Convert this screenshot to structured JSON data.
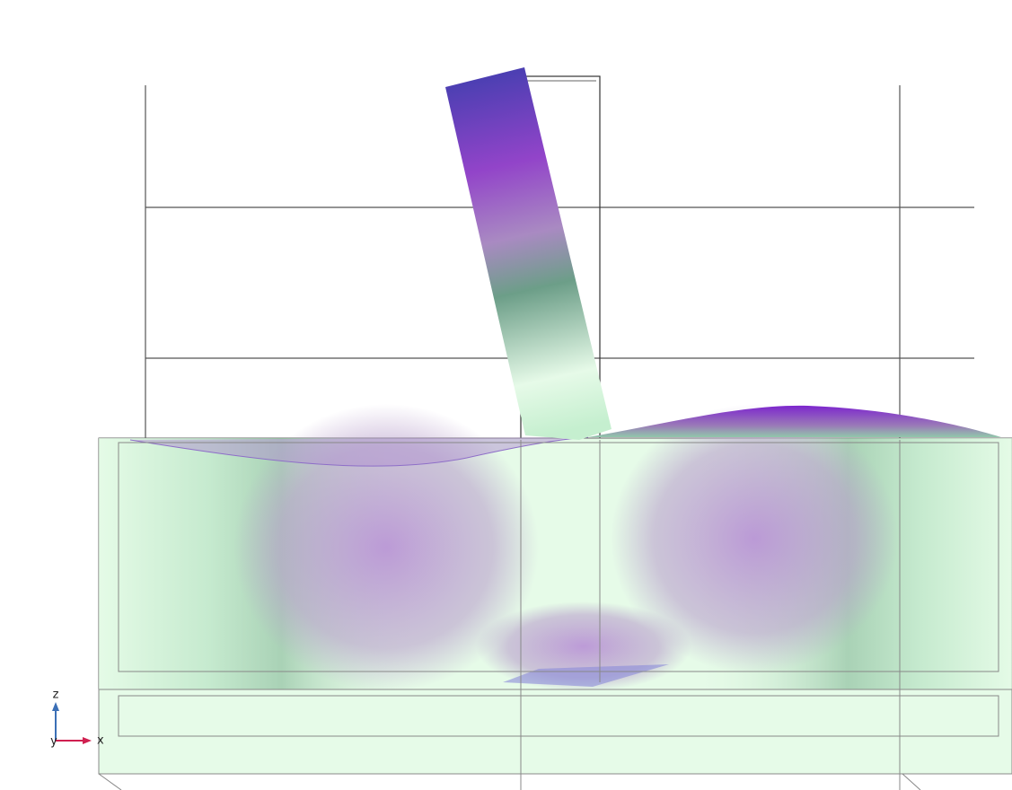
{
  "axis_triad": {
    "z": "z",
    "y": "y",
    "x": "x"
  }
}
